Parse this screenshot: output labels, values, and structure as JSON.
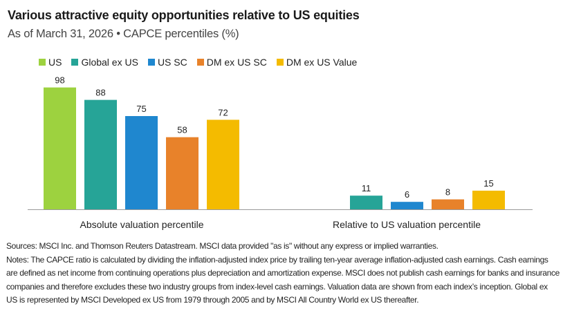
{
  "header": {
    "title": "Various attractive equity opportunities relative to US equities",
    "subtitle": "As of March 31, 2026 • CAPCE percentiles (%)"
  },
  "chart_data": {
    "type": "bar",
    "title": "Various attractive equity opportunities relative to US equities",
    "subtitle": "As of March 31, 2026 • CAPCE percentiles (%)",
    "categories": [
      "Absolute valuation percentile",
      "Relative to US valuation percentile"
    ],
    "series": [
      {
        "name": "US",
        "color": "#9dd23f",
        "values": [
          98,
          null
        ]
      },
      {
        "name": "Global ex US",
        "color": "#26a497",
        "values": [
          88,
          11
        ]
      },
      {
        "name": "US SC",
        "color": "#1f87cf",
        "values": [
          75,
          6
        ]
      },
      {
        "name": "DM ex US SC",
        "color": "#e8822a",
        "values": [
          58,
          8
        ]
      },
      {
        "name": "DM ex US Value",
        "color": "#f4bb00",
        "values": [
          72,
          15
        ]
      }
    ],
    "ylim": [
      0,
      100
    ],
    "grid": false,
    "data_labels": true,
    "legend_position": "top-left"
  },
  "footnotes": {
    "sources": "Sources: MSCI Inc. and Thomson Reuters Datastream. MSCI data provided \"as is\" without any express or implied warranties.",
    "notes": "Notes: The CAPCE ratio is calculated by dividing the inflation-adjusted index price by trailing ten-year average inflation-adjusted cash earnings. Cash earnings are defined as net income from continuing operations plus depreciation and amortization expense. MSCI does not publish cash earnings for banks and insurance companies and therefore excludes these two industry groups from index-level cash earnings. Valuation data are shown from each index’s inception. Global ex US is represented by MSCI Developed ex US from 1979 through 2005 and by MSCI All Country World ex US thereafter."
  }
}
